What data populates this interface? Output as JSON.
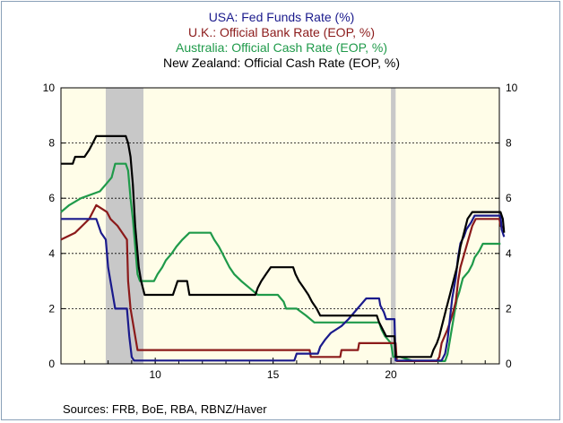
{
  "chart_data": {
    "type": "line",
    "title_lines": [
      {
        "label": "USA:  Fed Funds Rate (%)",
        "color": "#1a1a8c"
      },
      {
        "label": "U.K.: Official Bank Rate (EOP, %)",
        "color": "#8b1a1a"
      },
      {
        "label": "Australia: Official Cash Rate (EOP, %)",
        "color": "#1f9a4a"
      },
      {
        "label": "New Zealand: Official Cash Rate (EOP, %)",
        "color": "#000000"
      }
    ],
    "xlim": [
      2006.0,
      2024.6
    ],
    "ylim": [
      0,
      10
    ],
    "y_ticks": [
      0,
      2,
      4,
      6,
      8,
      10
    ],
    "x_tick_labels": [
      {
        "x": 2010,
        "label": "10"
      },
      {
        "x": 2015,
        "label": "15"
      },
      {
        "x": 2020,
        "label": "20"
      }
    ],
    "dashed_grid_y": [
      2,
      4,
      6,
      8
    ],
    "plot_background": "#fffde8",
    "recessions": [
      {
        "start": 2007.9,
        "end": 2009.5
      },
      {
        "start": 2020.0,
        "end": 2020.2
      }
    ],
    "recession_color": "#c8c8c8",
    "series": [
      {
        "name": "USA:  Fed Funds Rate (%)",
        "color": "#1a1a8c",
        "points": [
          [
            2006.0,
            5.25
          ],
          [
            2006.5,
            5.25
          ],
          [
            2007.5,
            5.25
          ],
          [
            2007.7,
            4.75
          ],
          [
            2007.9,
            4.5
          ],
          [
            2008.0,
            3.5
          ],
          [
            2008.1,
            3.0
          ],
          [
            2008.3,
            2.0
          ],
          [
            2008.8,
            2.0
          ],
          [
            2008.9,
            1.0
          ],
          [
            2009.0,
            0.25
          ],
          [
            2009.1,
            0.12
          ],
          [
            2015.9,
            0.12
          ],
          [
            2016.0,
            0.37
          ],
          [
            2016.9,
            0.37
          ],
          [
            2017.0,
            0.62
          ],
          [
            2017.2,
            0.87
          ],
          [
            2017.45,
            1.12
          ],
          [
            2017.9,
            1.37
          ],
          [
            2018.2,
            1.62
          ],
          [
            2018.45,
            1.87
          ],
          [
            2018.7,
            2.12
          ],
          [
            2018.95,
            2.37
          ],
          [
            2019.5,
            2.37
          ],
          [
            2019.55,
            2.12
          ],
          [
            2019.7,
            1.87
          ],
          [
            2019.8,
            1.62
          ],
          [
            2020.15,
            1.62
          ],
          [
            2020.2,
            0.12
          ],
          [
            2022.15,
            0.12
          ],
          [
            2022.3,
            0.37
          ],
          [
            2022.4,
            0.87
          ],
          [
            2022.5,
            1.62
          ],
          [
            2022.6,
            2.37
          ],
          [
            2022.75,
            3.12
          ],
          [
            2022.85,
            3.87
          ],
          [
            2022.95,
            4.37
          ],
          [
            2023.1,
            4.62
          ],
          [
            2023.2,
            4.87
          ],
          [
            2023.4,
            5.12
          ],
          [
            2023.55,
            5.37
          ],
          [
            2024.65,
            5.37
          ],
          [
            2024.7,
            4.87
          ],
          [
            2024.8,
            4.6
          ]
        ]
      },
      {
        "name": "U.K.: Official Bank Rate (EOP, %)",
        "color": "#8b1a1a",
        "points": [
          [
            2006.0,
            4.5
          ],
          [
            2006.6,
            4.75
          ],
          [
            2006.9,
            5.0
          ],
          [
            2007.2,
            5.25
          ],
          [
            2007.5,
            5.75
          ],
          [
            2007.95,
            5.5
          ],
          [
            2008.1,
            5.25
          ],
          [
            2008.4,
            5.0
          ],
          [
            2008.8,
            4.5
          ],
          [
            2008.85,
            3.0
          ],
          [
            2008.95,
            2.0
          ],
          [
            2009.05,
            1.5
          ],
          [
            2009.15,
            1.0
          ],
          [
            2009.25,
            0.5
          ],
          [
            2016.55,
            0.5
          ],
          [
            2016.6,
            0.25
          ],
          [
            2017.85,
            0.25
          ],
          [
            2017.9,
            0.5
          ],
          [
            2018.6,
            0.5
          ],
          [
            2018.65,
            0.75
          ],
          [
            2020.2,
            0.75
          ],
          [
            2020.25,
            0.1
          ],
          [
            2021.95,
            0.1
          ],
          [
            2022.05,
            0.25
          ],
          [
            2022.15,
            0.75
          ],
          [
            2022.4,
            1.25
          ],
          [
            2022.6,
            1.75
          ],
          [
            2022.75,
            2.25
          ],
          [
            2022.85,
            3.0
          ],
          [
            2022.95,
            3.5
          ],
          [
            2023.2,
            4.25
          ],
          [
            2023.45,
            5.0
          ],
          [
            2023.6,
            5.25
          ],
          [
            2024.6,
            5.25
          ],
          [
            2024.65,
            5.0
          ],
          [
            2024.8,
            4.9
          ]
        ]
      },
      {
        "name": "Australia: Official Cash Rate (EOP, %)",
        "color": "#1f9a4a",
        "points": [
          [
            2006.0,
            5.5
          ],
          [
            2006.35,
            5.75
          ],
          [
            2006.85,
            6.0
          ],
          [
            2007.65,
            6.25
          ],
          [
            2007.9,
            6.5
          ],
          [
            2008.15,
            6.75
          ],
          [
            2008.3,
            7.25
          ],
          [
            2008.75,
            7.25
          ],
          [
            2008.85,
            7.0
          ],
          [
            2008.95,
            6.0
          ],
          [
            2009.05,
            5.25
          ],
          [
            2009.15,
            4.25
          ],
          [
            2009.25,
            3.25
          ],
          [
            2009.35,
            3.0
          ],
          [
            2009.95,
            3.0
          ],
          [
            2010.1,
            3.25
          ],
          [
            2010.3,
            3.5
          ],
          [
            2010.45,
            3.75
          ],
          [
            2010.7,
            4.0
          ],
          [
            2010.9,
            4.25
          ],
          [
            2011.15,
            4.5
          ],
          [
            2011.45,
            4.75
          ],
          [
            2012.35,
            4.75
          ],
          [
            2012.5,
            4.5
          ],
          [
            2012.7,
            4.25
          ],
          [
            2012.85,
            4.0
          ],
          [
            2013.0,
            3.75
          ],
          [
            2013.15,
            3.5
          ],
          [
            2013.35,
            3.25
          ],
          [
            2013.65,
            3.0
          ],
          [
            2014.0,
            2.75
          ],
          [
            2014.35,
            2.5
          ],
          [
            2015.2,
            2.5
          ],
          [
            2015.45,
            2.25
          ],
          [
            2015.55,
            2.0
          ],
          [
            2016.0,
            2.0
          ],
          [
            2016.4,
            1.75
          ],
          [
            2016.75,
            1.5
          ],
          [
            2019.5,
            1.5
          ],
          [
            2019.6,
            1.25
          ],
          [
            2019.75,
            1.0
          ],
          [
            2020.0,
            0.75
          ],
          [
            2020.1,
            0.25
          ],
          [
            2020.4,
            0.25
          ],
          [
            2020.95,
            0.1
          ],
          [
            2022.3,
            0.1
          ],
          [
            2022.4,
            0.35
          ],
          [
            2022.5,
            0.85
          ],
          [
            2022.6,
            1.35
          ],
          [
            2022.7,
            1.85
          ],
          [
            2022.8,
            2.35
          ],
          [
            2022.9,
            2.6
          ],
          [
            2023.05,
            3.1
          ],
          [
            2023.3,
            3.35
          ],
          [
            2023.45,
            3.6
          ],
          [
            2023.55,
            3.85
          ],
          [
            2023.75,
            4.1
          ],
          [
            2023.9,
            4.35
          ],
          [
            2024.65,
            4.35
          ]
        ]
      },
      {
        "name": "New Zealand: Official Cash Rate (EOP, %)",
        "color": "#000000",
        "points": [
          [
            2006.0,
            7.25
          ],
          [
            2006.5,
            7.25
          ],
          [
            2006.6,
            7.5
          ],
          [
            2007.0,
            7.5
          ],
          [
            2007.2,
            7.75
          ],
          [
            2007.35,
            8.0
          ],
          [
            2007.5,
            8.25
          ],
          [
            2008.75,
            8.25
          ],
          [
            2008.85,
            8.0
          ],
          [
            2008.95,
            7.5
          ],
          [
            2009.05,
            6.5
          ],
          [
            2009.15,
            5.0
          ],
          [
            2009.3,
            3.5
          ],
          [
            2009.4,
            3.0
          ],
          [
            2009.55,
            2.5
          ],
          [
            2010.75,
            2.5
          ],
          [
            2010.85,
            2.75
          ],
          [
            2010.95,
            3.0
          ],
          [
            2011.35,
            3.0
          ],
          [
            2011.45,
            2.5
          ],
          [
            2014.25,
            2.5
          ],
          [
            2014.35,
            2.75
          ],
          [
            2014.5,
            3.0
          ],
          [
            2014.7,
            3.25
          ],
          [
            2014.9,
            3.5
          ],
          [
            2015.85,
            3.5
          ],
          [
            2015.95,
            3.25
          ],
          [
            2016.1,
            3.0
          ],
          [
            2016.3,
            2.75
          ],
          [
            2016.5,
            2.5
          ],
          [
            2016.65,
            2.25
          ],
          [
            2016.85,
            2.0
          ],
          [
            2017.0,
            1.75
          ],
          [
            2019.4,
            1.75
          ],
          [
            2019.5,
            1.5
          ],
          [
            2019.8,
            1.0
          ],
          [
            2020.15,
            1.0
          ],
          [
            2020.2,
            0.25
          ],
          [
            2021.7,
            0.25
          ],
          [
            2021.8,
            0.5
          ],
          [
            2021.95,
            0.75
          ],
          [
            2022.05,
            1.0
          ],
          [
            2022.2,
            1.5
          ],
          [
            2022.35,
            2.0
          ],
          [
            2022.5,
            2.5
          ],
          [
            2022.65,
            3.0
          ],
          [
            2022.8,
            3.5
          ],
          [
            2022.95,
            4.25
          ],
          [
            2023.1,
            4.75
          ],
          [
            2023.25,
            5.25
          ],
          [
            2023.45,
            5.5
          ],
          [
            2024.65,
            5.5
          ],
          [
            2024.75,
            5.25
          ],
          [
            2024.8,
            4.75
          ]
        ]
      }
    ]
  },
  "source_note": "Sources:  FRB, BoE, RBA, RBNZ/Haver"
}
